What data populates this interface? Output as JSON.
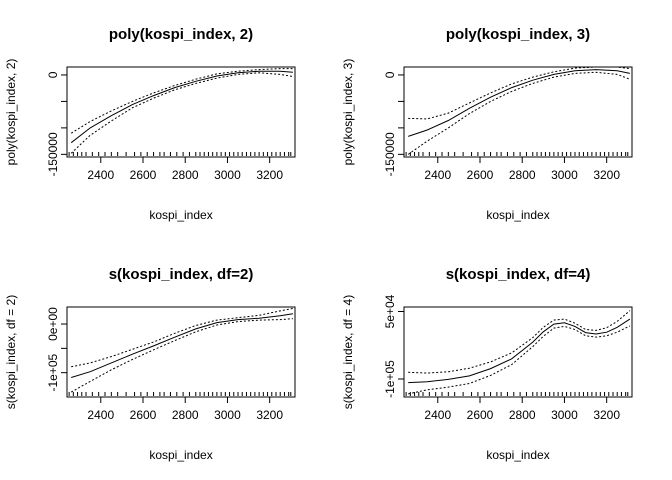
{
  "chart_data": [
    {
      "type": "line",
      "title": "poly(kospi_index, 2)",
      "xlabel": "kospi_index",
      "ylabel": "poly(kospi_index, 2)",
      "xlim": [
        2240,
        3320
      ],
      "ylim": [
        -155000,
        15000
      ],
      "x_ticks": [
        2400,
        2600,
        2800,
        3000,
        3200
      ],
      "x_tick_labels": [
        "2400",
        "2600",
        "2800",
        "3000",
        "3200"
      ],
      "y_ticks": [
        -150000,
        -100000,
        -50000,
        0
      ],
      "y_tick_labels": [
        "-150000",
        "",
        "",
        "0"
      ],
      "line_styles": [
        "solid",
        "dotted",
        "dotted"
      ],
      "series": [
        {
          "x": [
            2260,
            2350,
            2450,
            2550,
            2650,
            2750,
            2850,
            2950,
            3050,
            3150,
            3250,
            3310
          ],
          "values": [
            -128000,
            -100000,
            -77000,
            -56000,
            -39000,
            -24000,
            -12000,
            -2000,
            4000,
            7000,
            7000,
            5000
          ]
        },
        {
          "x": [
            2260,
            2350,
            2450,
            2550,
            2650,
            2750,
            2850,
            2950,
            3050,
            3150,
            3250,
            3310
          ],
          "values": [
            -110000,
            -88000,
            -68000,
            -50000,
            -34000,
            -20000,
            -8000,
            2000,
            7000,
            10000,
            12000,
            12000
          ]
        },
        {
          "x": [
            2260,
            2350,
            2450,
            2550,
            2650,
            2750,
            2850,
            2950,
            3050,
            3150,
            3250,
            3310
          ],
          "values": [
            -148000,
            -114000,
            -87000,
            -62000,
            -44000,
            -28000,
            -16000,
            -6000,
            1000,
            4000,
            1000,
            -3000
          ]
        }
      ],
      "rug": [
        2250,
        2270,
        2290,
        2310,
        2330,
        2360,
        2390,
        2420,
        2450,
        2480,
        2520,
        2560,
        2590,
        2620,
        2650,
        2680,
        2700,
        2730,
        2760,
        2790,
        2820,
        2850,
        2870,
        2890,
        2910,
        2930,
        2950,
        2970,
        2990,
        3010,
        3030,
        3050,
        3070,
        3090,
        3110,
        3130,
        3150,
        3170,
        3190,
        3210,
        3230,
        3250,
        3270,
        3290,
        3300
      ]
    },
    {
      "type": "line",
      "title": "poly(kospi_index, 3)",
      "xlabel": "kospi_index",
      "ylabel": "poly(kospi_index, 3)",
      "xlim": [
        2240,
        3320
      ],
      "ylim": [
        -155000,
        15000
      ],
      "x_ticks": [
        2400,
        2600,
        2800,
        3000,
        3200
      ],
      "x_tick_labels": [
        "2400",
        "2600",
        "2800",
        "3000",
        "3200"
      ],
      "y_ticks": [
        -150000,
        -100000,
        -50000,
        0
      ],
      "y_tick_labels": [
        "-150000",
        "",
        "",
        "0"
      ],
      "line_styles": [
        "solid",
        "dotted",
        "dotted"
      ],
      "series": [
        {
          "x": [
            2260,
            2350,
            2450,
            2550,
            2650,
            2750,
            2850,
            2950,
            3050,
            3150,
            3250,
            3310
          ],
          "values": [
            -116000,
            -104000,
            -86000,
            -63000,
            -42000,
            -24000,
            -10000,
            1000,
            8000,
            10000,
            8000,
            3000
          ]
        },
        {
          "x": [
            2260,
            2350,
            2450,
            2550,
            2650,
            2750,
            2850,
            2950,
            3050,
            3150,
            3250,
            3310
          ],
          "values": [
            -82000,
            -83000,
            -72000,
            -53000,
            -34000,
            -17000,
            -4000,
            6000,
            13000,
            15000,
            15000,
            12000
          ]
        },
        {
          "x": [
            2260,
            2350,
            2450,
            2550,
            2650,
            2750,
            2850,
            2950,
            3050,
            3150,
            3250,
            3310
          ],
          "values": [
            -150000,
            -125000,
            -100000,
            -73000,
            -50000,
            -31000,
            -16000,
            -4000,
            3000,
            5000,
            1000,
            -8000
          ]
        }
      ],
      "rug": [
        2250,
        2270,
        2290,
        2310,
        2330,
        2360,
        2390,
        2420,
        2450,
        2480,
        2520,
        2560,
        2590,
        2620,
        2650,
        2680,
        2700,
        2730,
        2760,
        2790,
        2820,
        2850,
        2870,
        2890,
        2910,
        2930,
        2950,
        2970,
        2990,
        3010,
        3030,
        3050,
        3070,
        3090,
        3110,
        3130,
        3150,
        3170,
        3190,
        3210,
        3230,
        3250,
        3270,
        3290,
        3300
      ]
    },
    {
      "type": "line",
      "title": "s(kospi_index, df=2)",
      "xlabel": "kospi_index",
      "ylabel": "s(kospi_index, df = 2)",
      "xlim": [
        2240,
        3320
      ],
      "ylim": [
        -150000,
        35000
      ],
      "x_ticks": [
        2400,
        2600,
        2800,
        3000,
        3200
      ],
      "x_tick_labels": [
        "2400",
        "2600",
        "2800",
        "3000",
        "3200"
      ],
      "y_ticks": [
        -100000,
        -50000,
        0
      ],
      "y_tick_labels": [
        "-1e+05",
        "",
        "0e+00"
      ],
      "line_styles": [
        "solid",
        "dotted",
        "dotted"
      ],
      "series": [
        {
          "x": [
            2260,
            2350,
            2450,
            2550,
            2650,
            2750,
            2850,
            2950,
            3050,
            3150,
            3250,
            3310
          ],
          "values": [
            -110000,
            -98000,
            -80000,
            -62000,
            -45000,
            -27000,
            -10000,
            3000,
            9000,
            12000,
            17000,
            21000
          ]
        },
        {
          "x": [
            2260,
            2350,
            2450,
            2550,
            2650,
            2750,
            2850,
            2950,
            3050,
            3150,
            3250,
            3310
          ],
          "values": [
            -88000,
            -80000,
            -67000,
            -52000,
            -37000,
            -19000,
            -3000,
            8000,
            13000,
            18000,
            27000,
            32000
          ]
        },
        {
          "x": [
            2260,
            2350,
            2450,
            2550,
            2650,
            2750,
            2850,
            2950,
            3050,
            3150,
            3250,
            3310
          ],
          "values": [
            -140000,
            -118000,
            -94000,
            -73000,
            -53000,
            -34000,
            -16000,
            -2000,
            5000,
            8000,
            9000,
            11000
          ]
        }
      ],
      "rug": [
        2250,
        2270,
        2290,
        2310,
        2330,
        2360,
        2390,
        2420,
        2450,
        2480,
        2520,
        2560,
        2590,
        2620,
        2650,
        2680,
        2700,
        2730,
        2760,
        2790,
        2820,
        2850,
        2870,
        2890,
        2910,
        2930,
        2950,
        2970,
        2990,
        3010,
        3030,
        3050,
        3070,
        3090,
        3110,
        3130,
        3150,
        3170,
        3190,
        3210,
        3230,
        3250,
        3270,
        3290,
        3300
      ]
    },
    {
      "type": "line",
      "title": "s(kospi_index, df=4)",
      "xlabel": "kospi_index",
      "ylabel": "s(kospi_index, df = 4)",
      "xlim": [
        2240,
        3320
      ],
      "ylim": [
        -140000,
        60000
      ],
      "x_ticks": [
        2400,
        2600,
        2800,
        3000,
        3200
      ],
      "x_tick_labels": [
        "2400",
        "2600",
        "2800",
        "3000",
        "3200"
      ],
      "y_ticks": [
        -100000,
        50000
      ],
      "y_tick_labels": [
        "-1e+05",
        "5e+04"
      ],
      "line_styles": [
        "solid",
        "dotted",
        "dotted"
      ],
      "series": [
        {
          "x": [
            2260,
            2350,
            2450,
            2550,
            2650,
            2750,
            2850,
            2900,
            2950,
            3000,
            3050,
            3100,
            3150,
            3200,
            3250,
            3310
          ],
          "values": [
            -108000,
            -106000,
            -101000,
            -93000,
            -77000,
            -55000,
            -18000,
            5000,
            22000,
            25000,
            17000,
            3000,
            0,
            4000,
            15000,
            33000
          ]
        },
        {
          "x": [
            2260,
            2350,
            2450,
            2550,
            2650,
            2750,
            2850,
            2900,
            2950,
            3000,
            3050,
            3100,
            3150,
            3200,
            3250,
            3310
          ],
          "values": [
            -85000,
            -87000,
            -84000,
            -76000,
            -62000,
            -42000,
            -8000,
            15000,
            31000,
            33000,
            24000,
            10000,
            8000,
            14000,
            28000,
            52000
          ]
        },
        {
          "x": [
            2260,
            2350,
            2450,
            2550,
            2650,
            2750,
            2850,
            2900,
            2950,
            3000,
            3050,
            3100,
            3150,
            3200,
            3250,
            3310
          ],
          "values": [
            -133000,
            -124000,
            -118000,
            -110000,
            -92000,
            -68000,
            -28000,
            -5000,
            13000,
            17000,
            10000,
            -4000,
            -7000,
            -4000,
            4000,
            18000
          ]
        }
      ],
      "rug": [
        2250,
        2270,
        2290,
        2310,
        2330,
        2360,
        2390,
        2420,
        2450,
        2480,
        2520,
        2560,
        2590,
        2620,
        2650,
        2680,
        2700,
        2730,
        2760,
        2790,
        2820,
        2850,
        2870,
        2890,
        2910,
        2930,
        2950,
        2970,
        2990,
        3010,
        3030,
        3050,
        3070,
        3090,
        3110,
        3130,
        3150,
        3170,
        3190,
        3210,
        3230,
        3250,
        3270,
        3290,
        3300
      ]
    }
  ]
}
